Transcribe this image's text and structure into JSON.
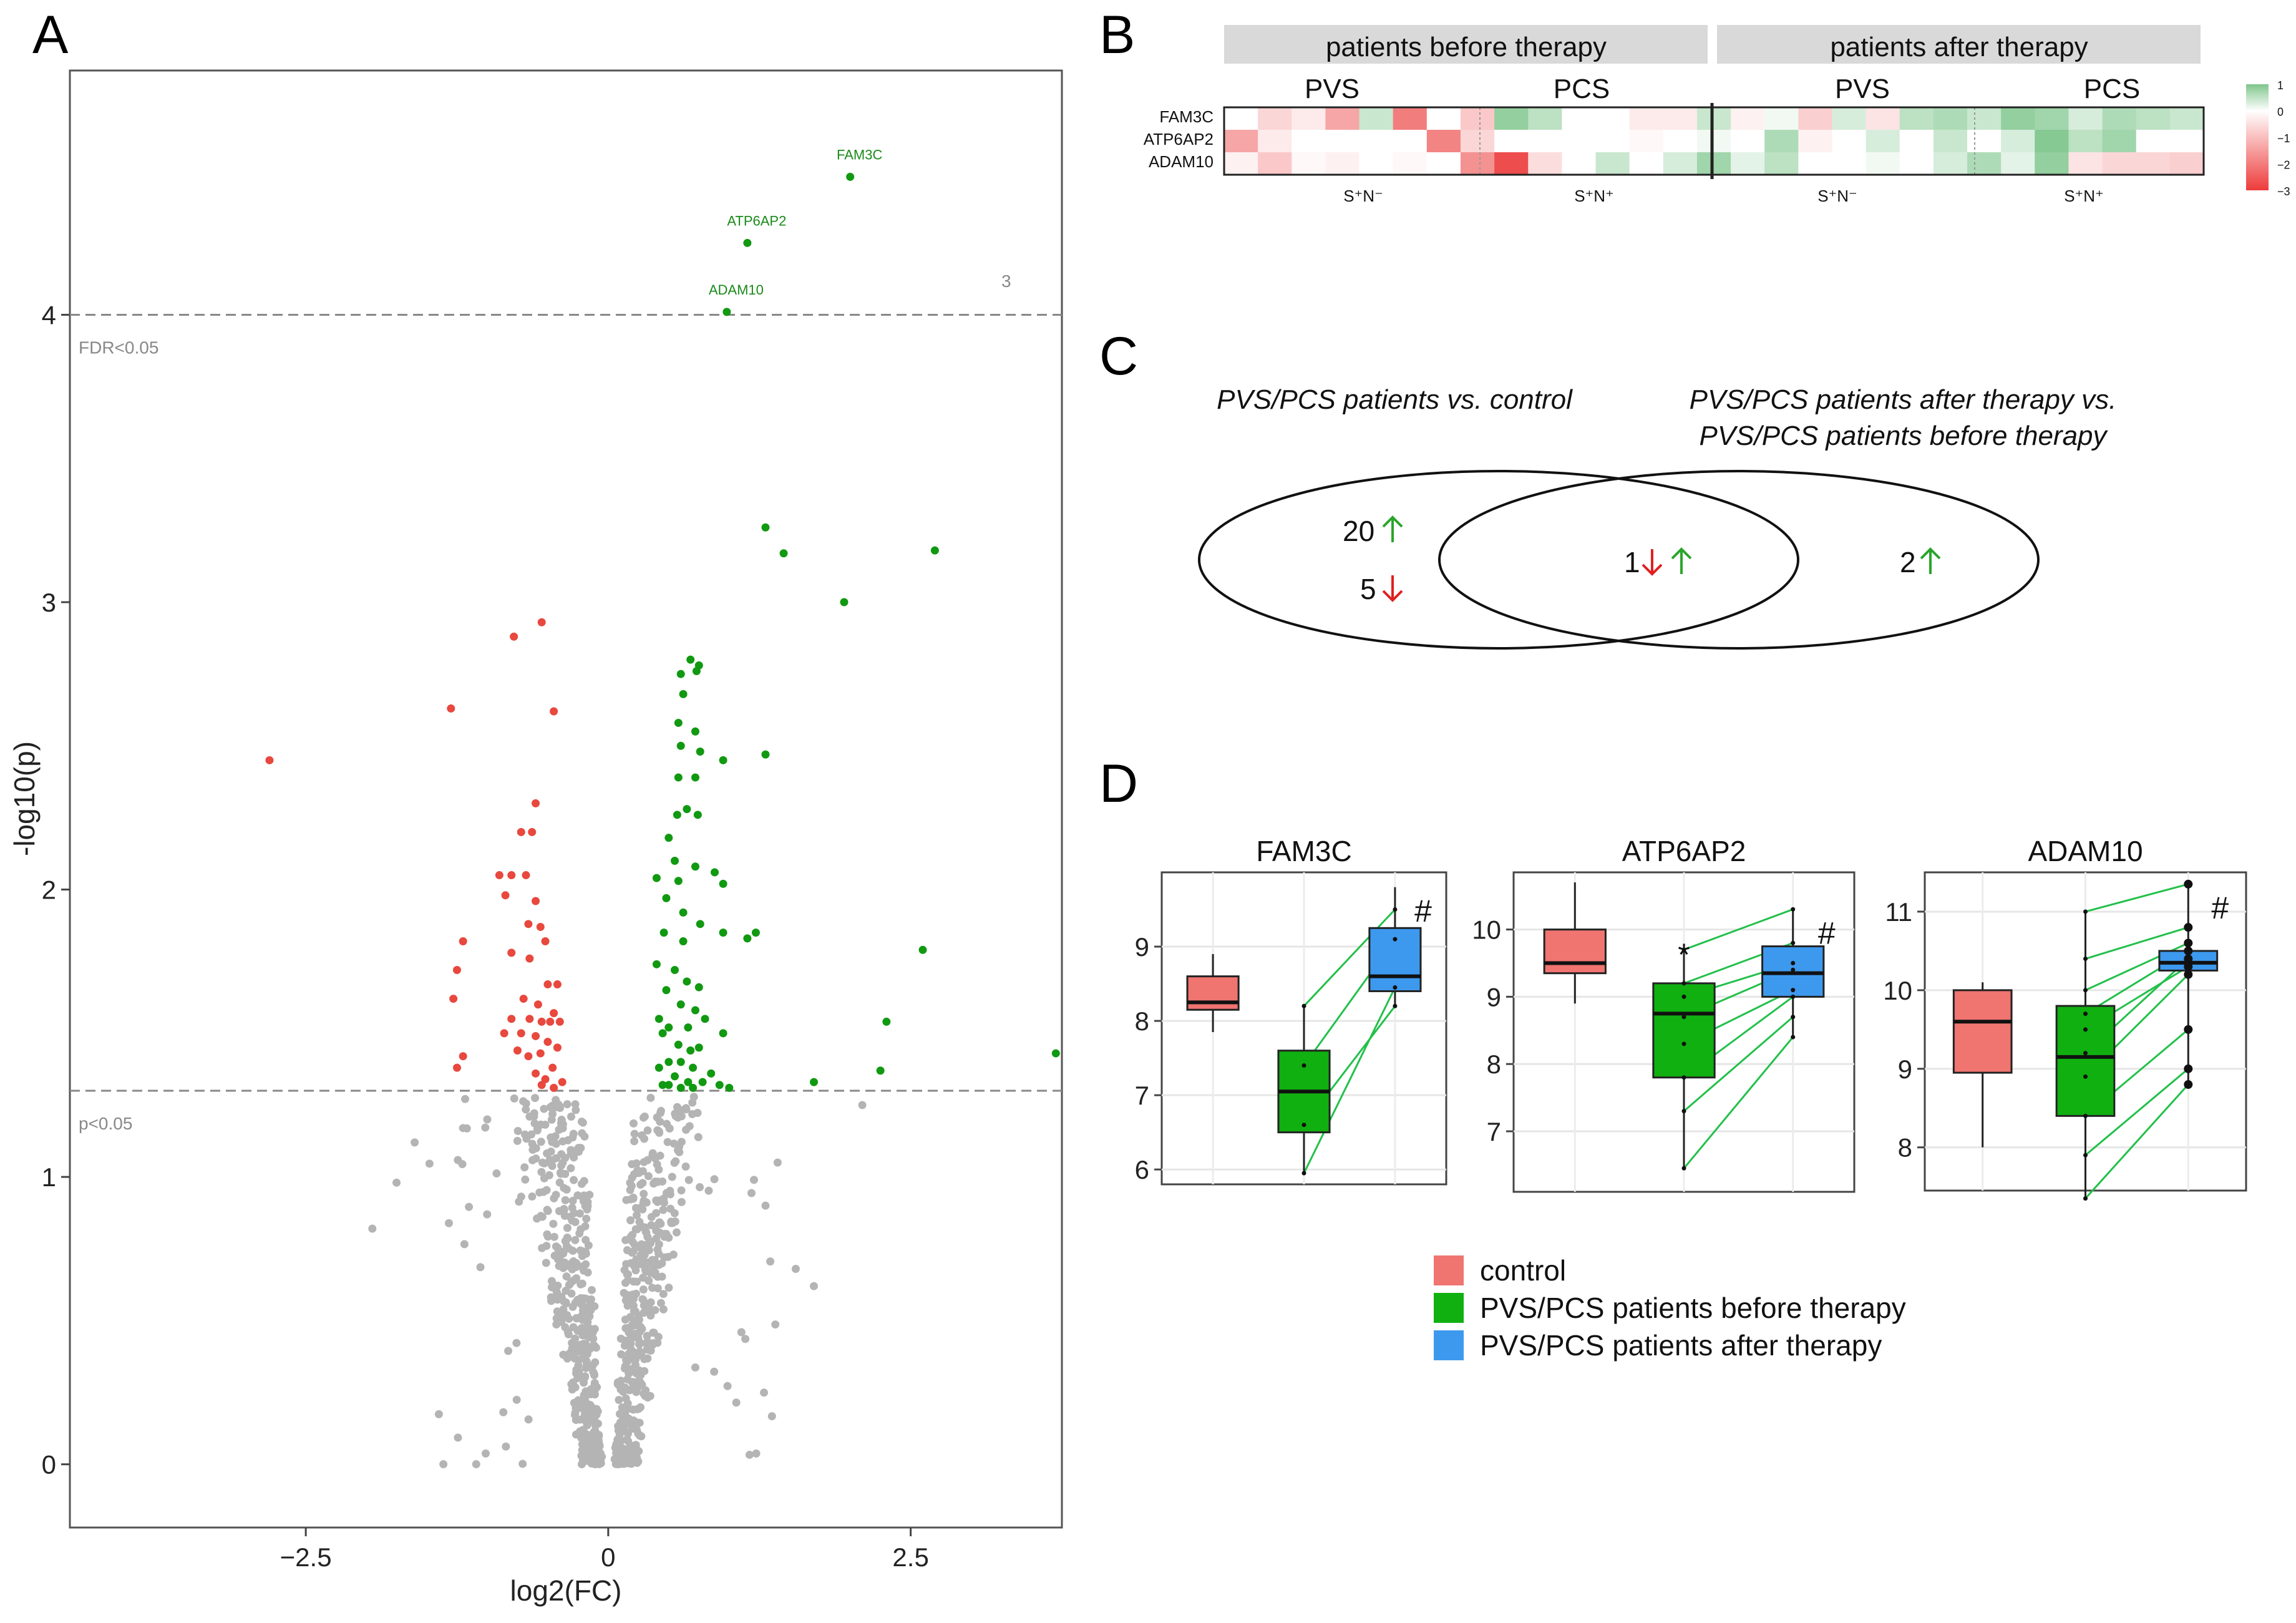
{
  "panels": {
    "a": "A",
    "b": "B",
    "c": "C",
    "d": "D"
  },
  "chart_data": [
    {
      "id": "volcano",
      "type": "scatter",
      "title": "",
      "xlabel": "log2(FC)",
      "ylabel": "-log10(p)",
      "xlim": [
        -4.45,
        3.75
      ],
      "ylim": [
        -0.22,
        4.85
      ],
      "x_ticks": [
        -2.5,
        0,
        2.5
      ],
      "x_tick_labels": [
        "−2.5",
        "0",
        "2.5"
      ],
      "y_ticks": [
        0,
        1,
        2,
        3,
        4
      ],
      "y_tick_labels": [
        "0",
        "1",
        "2",
        "3",
        "4"
      ],
      "hlines": [
        {
          "y": 1.3,
          "label": "p<0.05"
        },
        {
          "y": 4.0,
          "label": "FDR<0.05"
        }
      ],
      "corner_note": "3",
      "colors": {
        "up": "#119911",
        "down": "#e8483e",
        "ns": "#b4b4b4"
      },
      "labeled_points": [
        {
          "gene": "FAM3C",
          "x": 2.0,
          "y": 4.48
        },
        {
          "gene": "ATP6AP2",
          "x": 1.15,
          "y": 4.25
        },
        {
          "gene": "ADAM10",
          "x": 0.98,
          "y": 4.01
        }
      ],
      "up_points": [
        [
          1.3,
          3.26
        ],
        [
          1.45,
          3.17
        ],
        [
          2.7,
          3.18
        ],
        [
          1.95,
          3.0
        ],
        [
          0.68,
          2.8
        ],
        [
          0.73,
          2.76
        ],
        [
          0.6,
          2.75
        ],
        [
          0.75,
          2.78
        ],
        [
          0.62,
          2.68
        ],
        [
          0.58,
          2.58
        ],
        [
          0.72,
          2.55
        ],
        [
          0.6,
          2.5
        ],
        [
          0.76,
          2.48
        ],
        [
          1.3,
          2.47
        ],
        [
          0.95,
          2.45
        ],
        [
          0.58,
          2.39
        ],
        [
          0.72,
          2.39
        ],
        [
          0.57,
          2.26
        ],
        [
          0.65,
          2.28
        ],
        [
          0.74,
          2.26
        ],
        [
          0.5,
          2.18
        ],
        [
          0.55,
          2.1
        ],
        [
          0.72,
          2.08
        ],
        [
          0.88,
          2.06
        ],
        [
          0.4,
          2.04
        ],
        [
          0.58,
          2.03
        ],
        [
          0.95,
          2.02
        ],
        [
          0.48,
          1.97
        ],
        [
          0.62,
          1.92
        ],
        [
          0.76,
          1.88
        ],
        [
          1.22,
          1.85
        ],
        [
          1.15,
          1.83
        ],
        [
          0.95,
          1.85
        ],
        [
          0.46,
          1.85
        ],
        [
          0.62,
          1.82
        ],
        [
          2.6,
          1.79
        ],
        [
          0.4,
          1.74
        ],
        [
          0.55,
          1.72
        ],
        [
          0.65,
          1.68
        ],
        [
          0.75,
          1.66
        ],
        [
          0.48,
          1.65
        ],
        [
          0.6,
          1.6
        ],
        [
          0.72,
          1.58
        ],
        [
          0.8,
          1.55
        ],
        [
          0.42,
          1.55
        ],
        [
          0.5,
          1.52
        ],
        [
          0.66,
          1.52
        ],
        [
          0.95,
          1.5
        ],
        [
          2.3,
          1.54
        ],
        [
          3.7,
          1.43
        ],
        [
          0.45,
          1.5
        ],
        [
          0.58,
          1.46
        ],
        [
          0.68,
          1.44
        ],
        [
          0.75,
          1.45
        ],
        [
          0.5,
          1.4
        ],
        [
          0.6,
          1.4
        ],
        [
          0.7,
          1.38
        ],
        [
          0.85,
          1.36
        ],
        [
          0.42,
          1.38
        ],
        [
          0.55,
          1.35
        ],
        [
          0.66,
          1.33
        ],
        [
          0.78,
          1.33
        ],
        [
          0.92,
          1.32
        ],
        [
          1.0,
          1.31
        ],
        [
          0.5,
          1.32
        ],
        [
          0.6,
          1.31
        ],
        [
          0.7,
          1.31
        ],
        [
          0.45,
          1.32
        ],
        [
          1.7,
          1.33
        ],
        [
          2.25,
          1.37
        ]
      ],
      "down_points": [
        [
          -0.55,
          2.93
        ],
        [
          -0.78,
          2.88
        ],
        [
          -1.3,
          2.63
        ],
        [
          -0.45,
          2.62
        ],
        [
          -2.8,
          2.45
        ],
        [
          -0.6,
          2.3
        ],
        [
          -0.63,
          2.2
        ],
        [
          -0.72,
          2.2
        ],
        [
          -0.9,
          2.05
        ],
        [
          -0.8,
          2.05
        ],
        [
          -0.68,
          2.05
        ],
        [
          -0.6,
          1.96
        ],
        [
          -0.85,
          1.98
        ],
        [
          -0.66,
          1.88
        ],
        [
          -0.56,
          1.87
        ],
        [
          -0.52,
          1.82
        ],
        [
          -1.2,
          1.82
        ],
        [
          -0.8,
          1.78
        ],
        [
          -0.65,
          1.76
        ],
        [
          -1.25,
          1.72
        ],
        [
          -0.5,
          1.67
        ],
        [
          -0.42,
          1.67
        ],
        [
          -0.7,
          1.62
        ],
        [
          -1.28,
          1.62
        ],
        [
          -0.58,
          1.6
        ],
        [
          -0.45,
          1.57
        ],
        [
          -0.65,
          1.55
        ],
        [
          -0.8,
          1.55
        ],
        [
          -0.55,
          1.54
        ],
        [
          -0.48,
          1.54
        ],
        [
          -0.4,
          1.54
        ],
        [
          -0.72,
          1.5
        ],
        [
          -0.6,
          1.49
        ],
        [
          -0.86,
          1.5
        ],
        [
          -0.5,
          1.47
        ],
        [
          -0.42,
          1.45
        ],
        [
          -0.75,
          1.44
        ],
        [
          -0.56,
          1.43
        ],
        [
          -0.66,
          1.42
        ],
        [
          -1.2,
          1.42
        ],
        [
          -1.25,
          1.38
        ],
        [
          -0.46,
          1.38
        ],
        [
          -0.6,
          1.36
        ],
        [
          -0.52,
          1.34
        ],
        [
          -0.38,
          1.33
        ],
        [
          -0.45,
          1.31
        ],
        [
          -0.55,
          1.32
        ]
      ]
    },
    {
      "id": "heatmap",
      "type": "heatmap",
      "strip_labels": [
        "patients before therapy",
        "patients  after therapy"
      ],
      "subgroups": [
        "PVS",
        "PCS",
        "PVS",
        "PCS"
      ],
      "group_labels": [
        "S⁺N⁻",
        "S⁺N⁺",
        "S⁺N⁻",
        "S⁺N⁺"
      ],
      "rows": [
        "FAM3C",
        "ATP6AP2",
        "ADAM10"
      ],
      "scale_ticks": [
        "1",
        "0",
        "−1",
        "−2",
        "−3"
      ],
      "scale_range": [
        -3,
        1
      ],
      "values": [
        [
          0,
          -0.6,
          -0.3,
          -1.3,
          0.4,
          -1.9,
          0,
          -0.8,
          0.8,
          0.5,
          0,
          0,
          -0.3,
          -0.3,
          0.4,
          -0.2,
          0.1,
          -0.7,
          0.3,
          -0.4,
          0.5,
          0.6,
          0.4,
          0.8,
          0.7,
          0.3,
          0.6,
          0.5,
          0.4
        ],
        [
          -1.3,
          -0.3,
          0,
          0,
          0,
          0,
          -1.8,
          -0.6,
          0,
          0,
          0,
          0,
          -0.1,
          0,
          0.1,
          0,
          0.6,
          -0.2,
          0,
          0.3,
          0,
          0.4,
          0,
          0.3,
          0.9,
          0.5,
          0.7,
          0,
          0
        ],
        [
          -0.2,
          -0.8,
          -0.1,
          -0.2,
          0,
          -0.1,
          0,
          -1.6,
          -2.6,
          -0.5,
          0,
          0.4,
          0,
          0.3,
          0.7,
          0.2,
          0.5,
          0,
          0,
          0.1,
          0,
          0.3,
          0.6,
          0.2,
          0.8,
          -0.4,
          -0.6,
          -0.6,
          -0.7
        ]
      ]
    },
    {
      "id": "boxplots",
      "type": "box",
      "colors": {
        "control": "#f07470",
        "before": "#10b010",
        "after": "#3d99ee"
      },
      "legend": [
        {
          "key": "control",
          "label": "control"
        },
        {
          "key": "before",
          "label": "PVS/PCS patients before therapy"
        },
        {
          "key": "after",
          "label": "PVS/PCS patients after therapy"
        }
      ],
      "facets": [
        {
          "title": "FAM3C",
          "ylim": [
            5.8,
            10.0
          ],
          "ticks": [
            6,
            7,
            8,
            9
          ],
          "boxes": [
            {
              "group": "control",
              "q1": 8.15,
              "median": 8.25,
              "q3": 8.6,
              "whisker_low": 7.85,
              "whisker_high": 8.9
            },
            {
              "group": "before",
              "q1": 6.5,
              "median": 7.05,
              "q3": 7.6,
              "whisker_low": 5.95,
              "whisker_high": 8.2,
              "sig": ""
            },
            {
              "group": "after",
              "q1": 8.4,
              "median": 8.6,
              "q3": 9.25,
              "whisker_low": 8.2,
              "whisker_high": 9.8,
              "sig": "#"
            }
          ],
          "pairs": [
            [
              5.95,
              8.45
            ],
            [
              6.6,
              8.2
            ],
            [
              7.4,
              9.1
            ],
            [
              8.2,
              9.5
            ]
          ]
        },
        {
          "title": "ATP6AP2",
          "ylim": [
            6.1,
            10.85
          ],
          "ticks": [
            7,
            8,
            9,
            10
          ],
          "boxes": [
            {
              "group": "control",
              "q1": 9.35,
              "median": 9.5,
              "q3": 10.0,
              "whisker_low": 8.9,
              "whisker_high": 10.7
            },
            {
              "group": "before",
              "q1": 7.8,
              "median": 8.75,
              "q3": 9.2,
              "whisker_low": 6.45,
              "whisker_high": 9.7,
              "sig": "*"
            },
            {
              "group": "after",
              "q1": 9.0,
              "median": 9.35,
              "q3": 9.75,
              "whisker_low": 8.4,
              "whisker_high": 10.3,
              "sig": "#"
            }
          ],
          "pairs": [
            [
              6.45,
              8.4
            ],
            [
              7.3,
              8.7
            ],
            [
              7.8,
              9.0
            ],
            [
              8.3,
              9.1
            ],
            [
              8.7,
              9.4
            ],
            [
              9.0,
              9.5
            ],
            [
              9.2,
              9.8
            ],
            [
              9.7,
              10.3
            ]
          ]
        },
        {
          "title": "ADAM10",
          "ylim": [
            7.45,
            11.5
          ],
          "ticks": [
            8,
            9,
            10,
            11
          ],
          "boxes": [
            {
              "group": "control",
              "q1": 8.95,
              "median": 9.6,
              "q3": 10.0,
              "whisker_low": 8.0,
              "whisker_high": 10.1
            },
            {
              "group": "before",
              "q1": 8.4,
              "median": 9.15,
              "q3": 9.8,
              "whisker_low": 7.35,
              "whisker_high": 11.0,
              "sig": ""
            },
            {
              "group": "after",
              "q1": 10.25,
              "median": 10.35,
              "q3": 10.5,
              "whisker_low": 8.8,
              "whisker_high": 11.35,
              "sig": "#"
            }
          ],
          "pairs": [
            [
              7.35,
              8.8
            ],
            [
              7.9,
              9.0
            ],
            [
              8.4,
              9.5
            ],
            [
              8.9,
              10.2
            ],
            [
              9.2,
              10.4
            ],
            [
              9.5,
              10.3
            ],
            [
              9.7,
              10.5
            ],
            [
              10.0,
              10.6
            ],
            [
              10.4,
              10.8
            ],
            [
              11.0,
              11.35
            ]
          ]
        }
      ]
    }
  ],
  "venn": {
    "left_title": "PVS/PCS patients vs. control",
    "right_title_line1": "PVS/PCS patients after therapy vs.",
    "right_title_line2": "PVS/PCS patients before therapy",
    "left_up": "20",
    "left_down": "5",
    "overlap": "1",
    "right_up": "2",
    "up_color": "#2aa52a",
    "down_color": "#e02020"
  }
}
